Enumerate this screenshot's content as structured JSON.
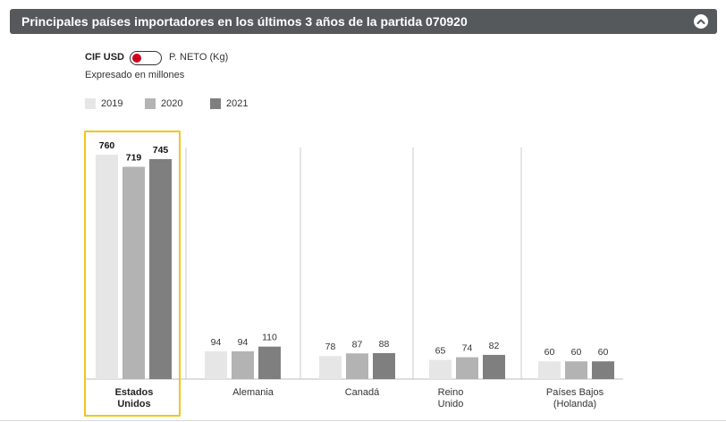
{
  "header": {
    "title": "Principales países importadores en los últimos 3 años de la partida 070920",
    "collapse_icon": "chevron-up-icon"
  },
  "toggle": {
    "left_label": "CIF USD",
    "right_label": "P. NETO (Kg)",
    "state": "CIF USD",
    "knob_color": "#d0021b"
  },
  "subtitle": "Expresado en millones",
  "legend": [
    {
      "label": "2019",
      "color": "#e6e6e6"
    },
    {
      "label": "2020",
      "color": "#b3b3b3"
    },
    {
      "label": "2021",
      "color": "#7f7f7f"
    }
  ],
  "chart_data": {
    "type": "bar",
    "title": "",
    "categories": [
      "Estados Unidos",
      "Alemania",
      "Canadá",
      "Reino Unido",
      "Países Bajos (Holanda)"
    ],
    "category_labels": [
      [
        "Estados",
        "Unidos"
      ],
      [
        "Alemania"
      ],
      [
        "Canadá"
      ],
      [
        "Reino",
        "Unido"
      ],
      [
        "Países Bajos",
        "(Holanda)"
      ]
    ],
    "series": [
      {
        "name": "2019",
        "values": [
          760,
          94,
          78,
          65,
          60
        ],
        "color": "#e6e6e6"
      },
      {
        "name": "2020",
        "values": [
          719,
          94,
          87,
          74,
          60
        ],
        "color": "#b3b3b3"
      },
      {
        "name": "2021",
        "values": [
          745,
          110,
          88,
          82,
          60
        ],
        "color": "#7f7f7f"
      }
    ],
    "highlighted_category": "Estados Unidos",
    "highlight_color": "#f2c51c"
  }
}
